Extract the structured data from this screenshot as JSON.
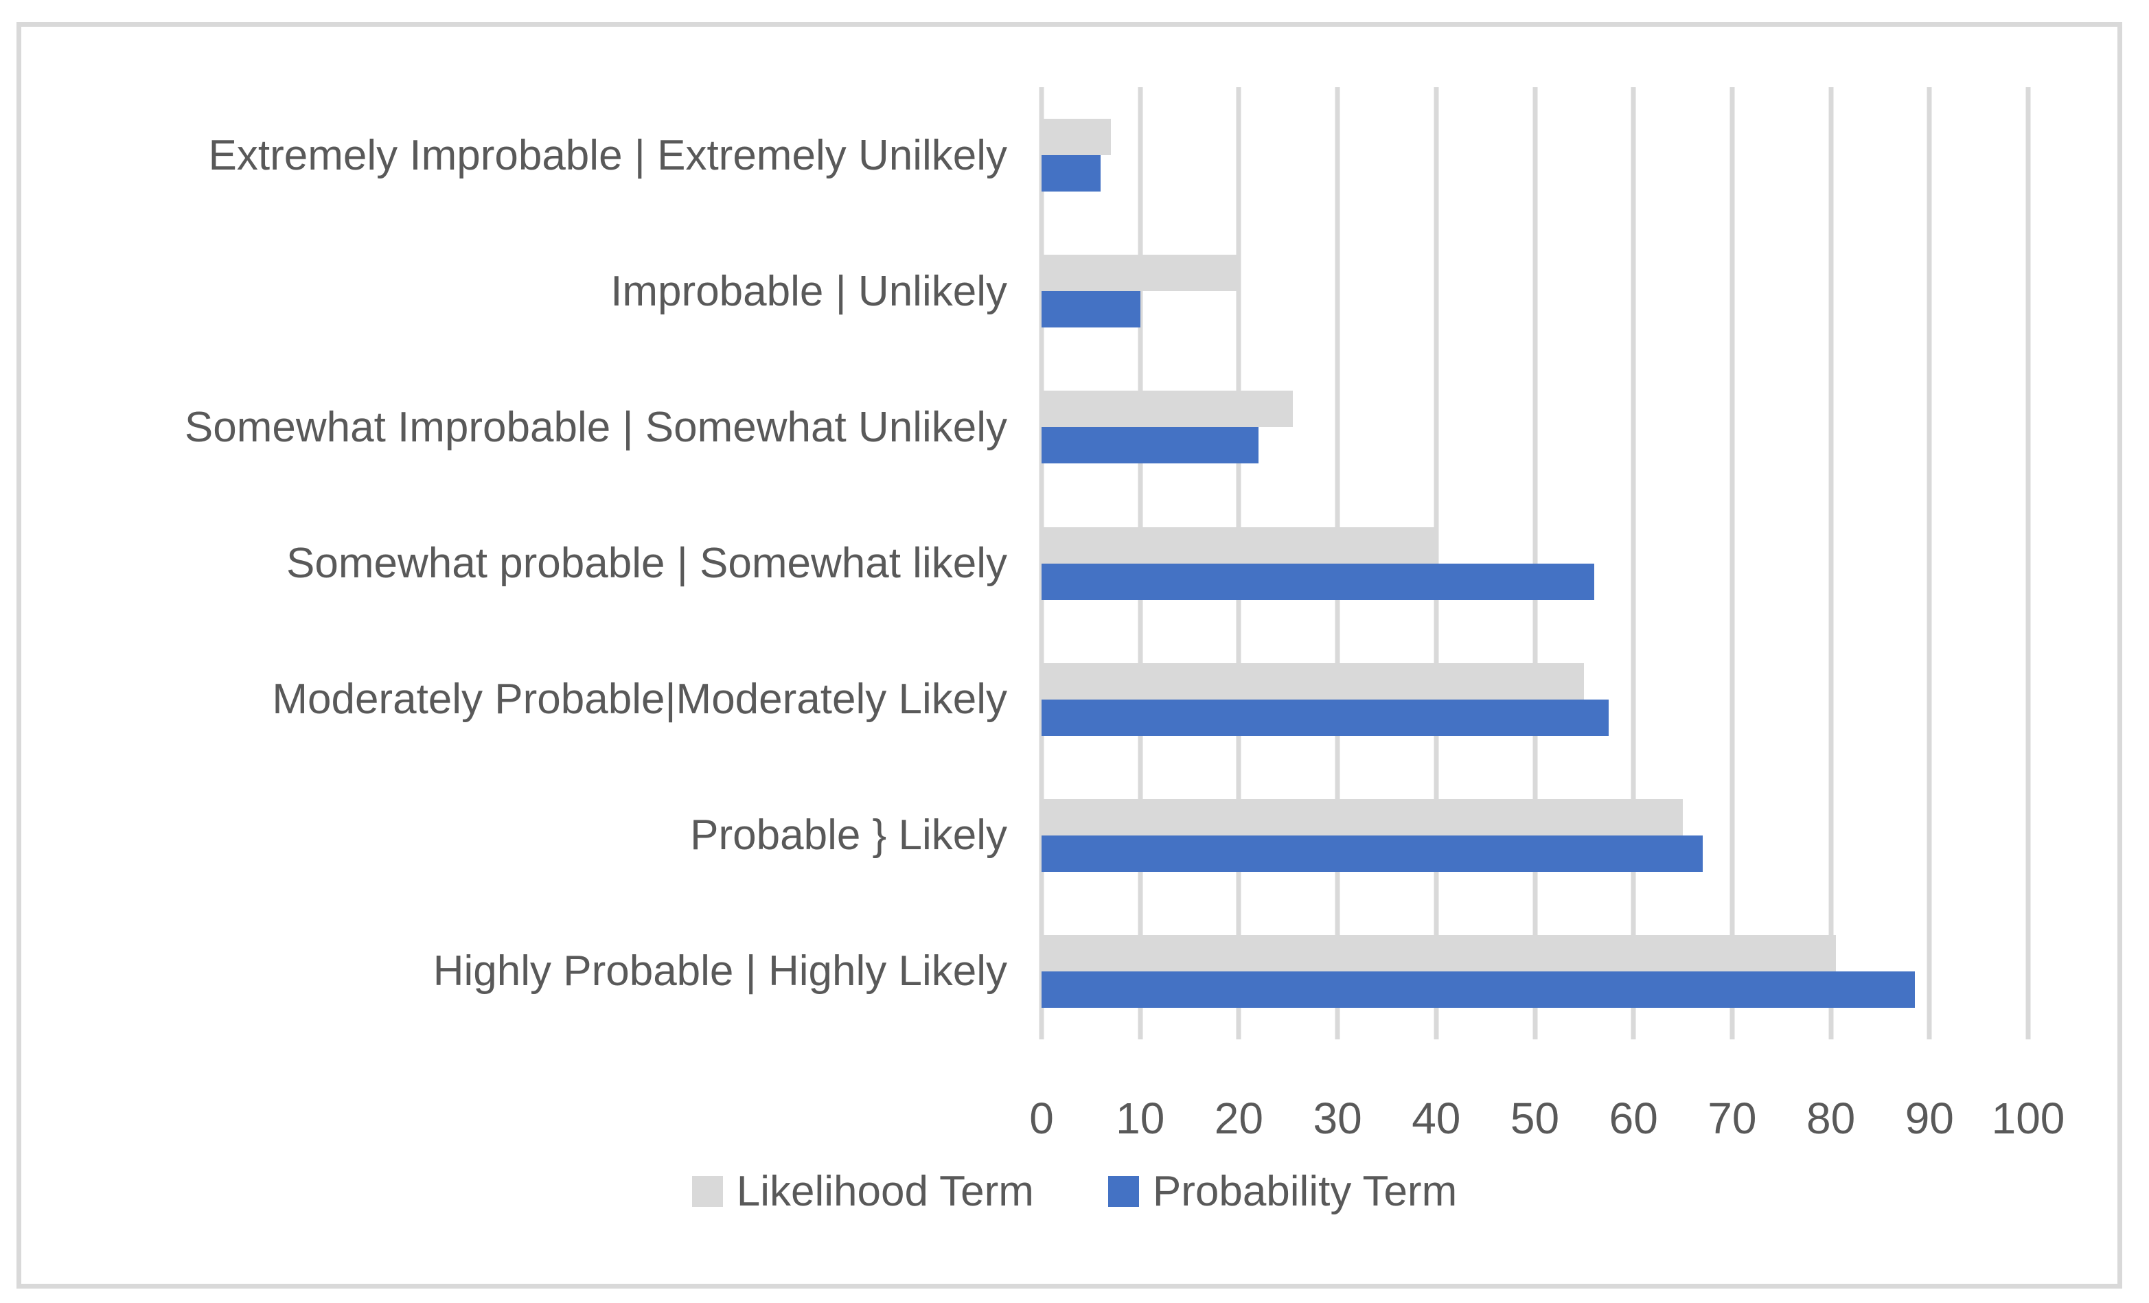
{
  "chart_data": {
    "type": "bar",
    "orientation": "horizontal",
    "title": "",
    "xlabel": "",
    "ylabel": "",
    "xlim": [
      0,
      100
    ],
    "xticks": [
      0,
      10,
      20,
      30,
      40,
      50,
      60,
      70,
      80,
      90,
      100
    ],
    "grid": true,
    "legend_position": "bottom",
    "categories": [
      "Extremely Improbable | Extremely Unilkely",
      "Improbable | Unlikely",
      "Somewhat Improbable | Somewhat Unlikely",
      "Somewhat probable | Somewhat likely",
      "Moderately Probable|Moderately Likely",
      "Probable } Likely",
      "Highly Probable | Highly Likely"
    ],
    "series": [
      {
        "name": "Likelihood Term",
        "color": "#D9D9D9",
        "values": [
          7,
          20,
          25.5,
          40,
          55,
          65,
          80.5
        ]
      },
      {
        "name": "Probability Term",
        "color": "#4472C4",
        "values": [
          6,
          10,
          22,
          56,
          57.5,
          67,
          88.5
        ]
      }
    ]
  },
  "style": {
    "gridline_color": "#D9D9D9",
    "axis_text_color": "#595959",
    "label_text_color": "#595959",
    "frame_border_color": "#D9D9D9",
    "background_color": "#FFFFFF"
  }
}
